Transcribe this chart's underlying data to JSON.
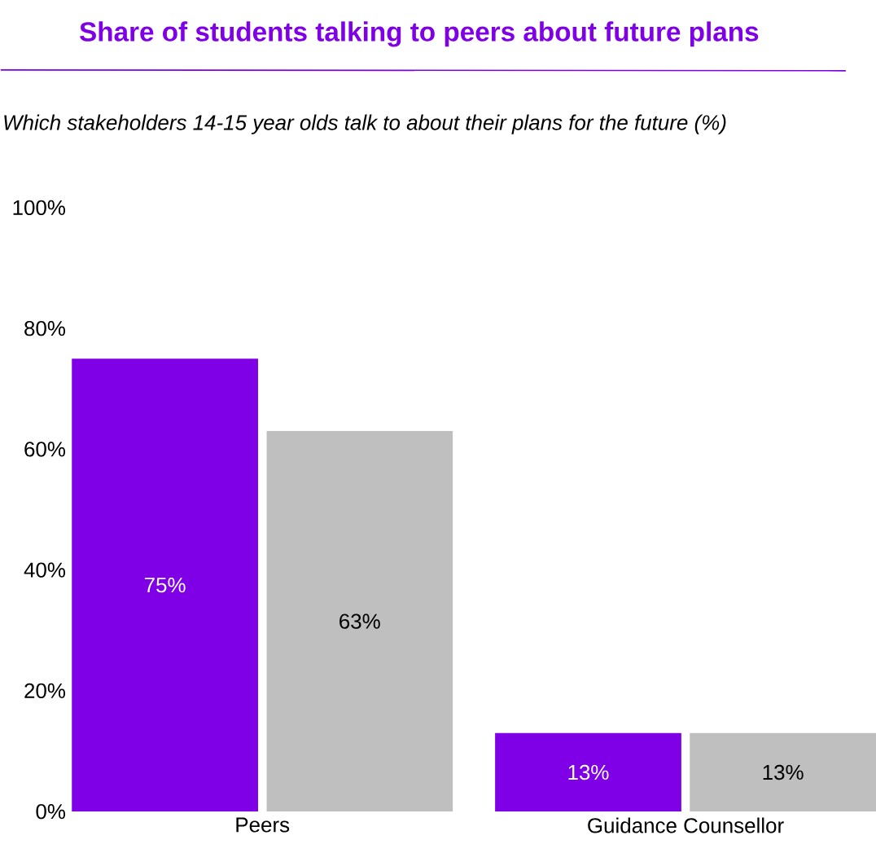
{
  "chart_data": {
    "type": "bar",
    "title": "Share of students talking to peers about future plans",
    "subtitle": "Which stakeholders 14-15 year olds talk to about their plans for the future (%)",
    "categories": [
      "Peers",
      "Guidance Counsellor"
    ],
    "series": [
      {
        "color": "#7f00e6",
        "values": [
          75,
          13
        ],
        "value_labels": [
          "75%",
          "13%"
        ]
      },
      {
        "color": "#bfbfbf",
        "values": [
          63,
          13
        ],
        "value_labels": [
          "63%",
          "13%"
        ]
      }
    ],
    "ylim": [
      0,
      100
    ],
    "yticks": [
      {
        "value": 0,
        "label": "0%"
      },
      {
        "value": 20,
        "label": "20%"
      },
      {
        "value": 40,
        "label": "40%"
      },
      {
        "value": 60,
        "label": "60%"
      },
      {
        "value": 80,
        "label": "80%"
      },
      {
        "value": 100,
        "label": "100%"
      }
    ]
  }
}
